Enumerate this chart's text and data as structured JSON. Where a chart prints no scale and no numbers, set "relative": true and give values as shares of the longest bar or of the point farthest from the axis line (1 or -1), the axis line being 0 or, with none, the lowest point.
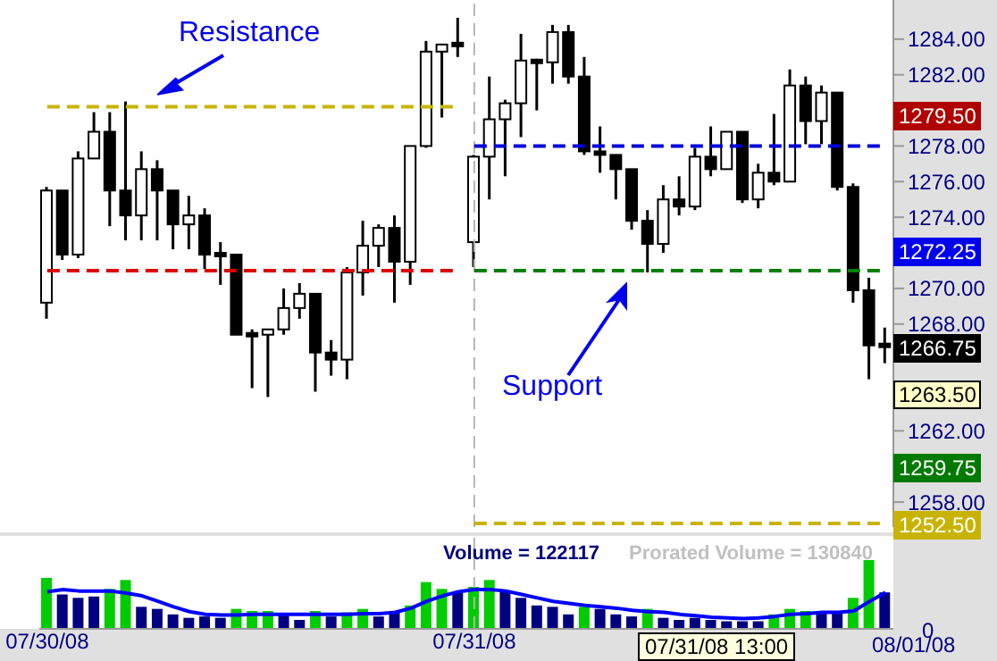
{
  "chart_data": [
    {
      "type": "candlestick",
      "color": "#000000",
      "categories": [
        "07/30/08",
        null,
        null,
        null,
        null,
        null,
        null,
        null,
        null,
        null,
        null,
        null,
        null,
        null,
        null,
        null,
        null,
        null,
        null,
        null,
        null,
        null,
        null,
        null,
        null,
        null,
        null,
        "07/31/08",
        null,
        null,
        null,
        null,
        null,
        null,
        null,
        null,
        null,
        null,
        null,
        null,
        null,
        null,
        null,
        null,
        null,
        null,
        null,
        null,
        null,
        null,
        null,
        null,
        null,
        null
      ],
      "ohlc": [
        [
          1269.2,
          1275.7,
          1268.3,
          1275.5
        ],
        [
          1275.5,
          1275.5,
          1271.6,
          1271.9
        ],
        [
          1271.9,
          1277.7,
          1271.7,
          1277.3
        ],
        [
          1277.3,
          1279.9,
          1277.3,
          1278.8
        ],
        [
          1278.8,
          1279.9,
          1273.5,
          1275.5
        ],
        [
          1275.5,
          1280.5,
          1272.7,
          1274.1
        ],
        [
          1274.1,
          1277.7,
          1272.7,
          1276.7
        ],
        [
          1276.7,
          1277.2,
          1272.7,
          1275.5
        ],
        [
          1275.5,
          1275.5,
          1272.2,
          1273.6
        ],
        [
          1273.6,
          1275.2,
          1272.2,
          1274.1
        ],
        [
          1274.1,
          1274.5,
          1271.1,
          1271.9
        ],
        [
          1271.9,
          1272.6,
          1270.2,
          1271.9
        ],
        [
          1271.9,
          1271.9,
          1267.4,
          1267.4
        ],
        [
          1267.4,
          1267.7,
          1264.4,
          1267.4
        ],
        [
          1267.4,
          1267.7,
          1263.9,
          1267.7
        ],
        [
          1267.7,
          1270.0,
          1267.4,
          1268.9
        ],
        [
          1268.9,
          1270.3,
          1268.3,
          1269.7
        ],
        [
          1269.7,
          1269.7,
          1264.2,
          1266.4
        ],
        [
          1266.4,
          1267.1,
          1265.1,
          1266.0
        ],
        [
          1266.0,
          1271.2,
          1264.9,
          1270.9
        ],
        [
          1270.9,
          1273.8,
          1269.6,
          1272.4
        ],
        [
          1272.4,
          1273.6,
          1271.2,
          1273.4
        ],
        [
          1273.4,
          1274.1,
          1269.2,
          1271.5
        ],
        [
          1271.5,
          1278.0,
          1270.2,
          1278.0
        ],
        [
          1278.0,
          1283.9,
          1277.9,
          1283.3
        ],
        [
          1283.3,
          1283.7,
          1279.6,
          1283.7
        ],
        [
          1283.7,
          1285.2,
          1283.0,
          1283.7
        ],
        [
          1272.6,
          1277.5,
          1271.2,
          1277.4
        ],
        [
          1277.4,
          1281.9,
          1275.0,
          1279.5
        ],
        [
          1279.5,
          1280.6,
          1276.3,
          1280.4
        ],
        [
          1280.4,
          1284.3,
          1278.5,
          1282.8
        ],
        [
          1282.8,
          1282.9,
          1280.0,
          1282.7
        ],
        [
          1282.7,
          1284.8,
          1281.5,
          1284.4
        ],
        [
          1284.4,
          1284.8,
          1281.5,
          1281.9
        ],
        [
          1281.9,
          1283.0,
          1277.5,
          1277.7
        ],
        [
          1277.7,
          1279.1,
          1276.5,
          1277.5
        ],
        [
          1277.5,
          1277.5,
          1275.0,
          1276.7
        ],
        [
          1276.7,
          1276.7,
          1273.3,
          1273.8
        ],
        [
          1273.8,
          1274.4,
          1270.9,
          1272.5
        ],
        [
          1272.5,
          1275.8,
          1272.0,
          1275.0
        ],
        [
          1275.0,
          1276.3,
          1274.1,
          1274.6
        ],
        [
          1274.6,
          1277.9,
          1274.4,
          1277.4
        ],
        [
          1277.4,
          1279.1,
          1276.3,
          1276.7
        ],
        [
          1276.7,
          1278.8,
          1276.7,
          1278.8
        ],
        [
          1278.8,
          1278.8,
          1274.8,
          1275.0
        ],
        [
          1275.0,
          1277.0,
          1274.5,
          1276.5
        ],
        [
          1276.5,
          1279.8,
          1275.8,
          1276.0
        ],
        [
          1276.0,
          1282.3,
          1276.0,
          1281.4
        ],
        [
          1281.4,
          1281.9,
          1278.1,
          1279.4
        ],
        [
          1279.4,
          1281.4,
          1278.1,
          1281.0
        ],
        [
          1281.0,
          1281.0,
          1275.5,
          1275.7
        ],
        [
          1275.7,
          1275.9,
          1269.2,
          1269.9
        ],
        [
          1269.9,
          1270.6,
          1264.9,
          1266.8
        ],
        [
          1266.8,
          1267.8,
          1265.8,
          1266.8
        ]
      ],
      "series": [
        {
          "type": "line",
          "color": "#c8b400",
          "line_style": "dashed",
          "values": [
            1280.2,
            1280.2,
            1280.2,
            1280.2,
            1280.2,
            1280.2,
            1280.2,
            1280.2,
            1280.2,
            1280.2,
            1280.2,
            1280.2,
            1280.2,
            1280.2,
            1280.2,
            1280.2,
            1280.2,
            1280.2,
            1280.2,
            1280.2,
            1280.2,
            1280.2,
            1280.2,
            1280.2,
            1280.2,
            1280.2,
            1280.2,
            null,
            null,
            null,
            null,
            null,
            null,
            null,
            null,
            null,
            null,
            null,
            null,
            null,
            null,
            null,
            null,
            null,
            null,
            null,
            null,
            null,
            null,
            null,
            null,
            null,
            null,
            null
          ]
        },
        {
          "type": "line",
          "color": "#dd0000",
          "line_style": "dashed",
          "values": [
            1271,
            1271,
            1271,
            1271,
            1271,
            1271,
            1271,
            1271,
            1271,
            1271,
            1271,
            1271,
            1271,
            1271,
            1271,
            1271,
            1271,
            1271,
            1271,
            1271,
            1271,
            1271,
            1271,
            1271,
            1271,
            1271,
            1271,
            null,
            null,
            null,
            null,
            null,
            null,
            null,
            null,
            null,
            null,
            null,
            null,
            null,
            null,
            null,
            null,
            null,
            null,
            null,
            null,
            null,
            null,
            null,
            null,
            null,
            null,
            null
          ]
        },
        {
          "type": "line",
          "color": "#0000dd",
          "line_style": "dashed",
          "values": [
            null,
            null,
            null,
            null,
            null,
            null,
            null,
            null,
            null,
            null,
            null,
            null,
            null,
            null,
            null,
            null,
            null,
            null,
            null,
            null,
            null,
            null,
            null,
            null,
            null,
            null,
            null,
            1278,
            1278,
            1278,
            1278,
            1278,
            1278,
            1278,
            1278,
            1278,
            1278,
            1278,
            1278,
            1278,
            1278,
            1278,
            1278,
            1278,
            1278,
            1278,
            1278,
            1278,
            1278,
            1278,
            1278,
            1278,
            1278,
            1278
          ]
        },
        {
          "type": "line",
          "color": "#008000",
          "line_style": "dashed",
          "values": [
            null,
            null,
            null,
            null,
            null,
            null,
            null,
            null,
            null,
            null,
            null,
            null,
            null,
            null,
            null,
            null,
            null,
            null,
            null,
            null,
            null,
            null,
            null,
            null,
            null,
            null,
            null,
            1271,
            1271,
            1271,
            1271,
            1271,
            1271,
            1271,
            1271,
            1271,
            1271,
            1271,
            1271,
            1271,
            1271,
            1271,
            1271,
            1271,
            1271,
            1271,
            1271,
            1271,
            1271,
            1271,
            1271,
            1271,
            1271,
            1271
          ]
        },
        {
          "type": "line",
          "color": "#c8b400",
          "line_style": "dashed",
          "values": [
            null,
            null,
            null,
            null,
            null,
            null,
            null,
            null,
            null,
            null,
            null,
            null,
            null,
            null,
            null,
            null,
            null,
            null,
            null,
            null,
            null,
            null,
            null,
            null,
            null,
            null,
            null,
            1256.8,
            1256.8,
            1256.8,
            1256.8,
            1256.8,
            1256.8,
            1256.8,
            1256.8,
            1256.8,
            1256.8,
            1256.8,
            1256.8,
            1256.8,
            1256.8,
            1256.8,
            1256.8,
            1256.8,
            1256.8,
            1256.8,
            1256.8,
            1256.8,
            1256.8,
            1256.8,
            1256.8,
            1256.8,
            1256.8,
            1256.8
          ]
        }
      ],
      "ylim": [
        1256.6,
        1286.2
      ],
      "yticks": [
        {
          "value": 1258,
          "label": "1258.00"
        },
        {
          "value": 1260,
          "label": null
        },
        {
          "value": 1262,
          "label": "1262.00"
        },
        {
          "value": 1264,
          "label": null
        },
        {
          "value": 1266,
          "label": null
        },
        {
          "value": 1268,
          "label": "1268.00"
        },
        {
          "value": 1270,
          "label": "1270.00"
        },
        {
          "value": 1272,
          "label": null
        },
        {
          "value": 1274,
          "label": "1274.00"
        },
        {
          "value": 1276,
          "label": "1276.00"
        },
        {
          "value": 1278,
          "label": "1278.00"
        },
        {
          "value": 1280,
          "label": null
        },
        {
          "value": 1282,
          "label": "1282.00"
        },
        {
          "value": 1284,
          "label": "1284.00"
        }
      ],
      "tick_labels": "y",
      "ref_lines": [
        {
          "axis": "x",
          "value": "07/31/08",
          "color": "#b4b4b4",
          "line_style": "dashed"
        }
      ],
      "annotations": [
        "Resistance",
        "Support",
        "1279.50",
        "1272.25",
        "1266.75",
        "1263.50",
        "1259.75",
        "1252.50"
      ]
    },
    {
      "type": "bar",
      "relative": true,
      "categories": [
        "07/30/08",
        null,
        null,
        null,
        null,
        null,
        null,
        null,
        null,
        null,
        null,
        null,
        null,
        null,
        null,
        null,
        null,
        null,
        null,
        null,
        null,
        null,
        null,
        null,
        null,
        null,
        null,
        "07/31/08",
        null,
        null,
        null,
        null,
        null,
        null,
        null,
        null,
        null,
        null,
        null,
        null,
        null,
        null,
        null,
        null,
        null,
        null,
        null,
        null,
        null,
        null,
        null,
        null,
        null,
        null
      ],
      "series": [
        {
          "type": "bar",
          "values": [
            0.74,
            0.5,
            0.45,
            0.47,
            0.58,
            0.71,
            0.32,
            0.29,
            0.21,
            0.16,
            0.18,
            0.16,
            0.29,
            0.26,
            0.26,
            0.21,
            0.13,
            0.26,
            0.18,
            0.24,
            0.29,
            0.18,
            0.24,
            0.34,
            0.68,
            0.58,
            0.53,
            0.61,
            0.71,
            0.55,
            0.45,
            0.34,
            0.32,
            0.21,
            0.32,
            0.29,
            0.21,
            0.18,
            0.29,
            0.16,
            0.13,
            0.16,
            0.13,
            0.11,
            0.11,
            0.11,
            0.21,
            0.29,
            0.26,
            0.24,
            0.24,
            0.45,
            1,
            0.53
          ],
          "colors": [
            "#00cc00",
            "#000080",
            "#000080",
            "#000080",
            "#00cc00",
            "#00cc00",
            "#000080",
            "#000080",
            "#000080",
            "#000080",
            "#000080",
            "#000080",
            "#00cc00",
            "#00cc00",
            "#00cc00",
            "#000080",
            "#000080",
            "#00cc00",
            "#000080",
            "#00cc00",
            "#00cc00",
            "#000080",
            "#000080",
            "#00cc00",
            "#00cc00",
            "#00cc00",
            "#000080",
            "#00cc00",
            "#00cc00",
            "#000080",
            "#000080",
            "#000080",
            "#000080",
            "#000080",
            "#00cc00",
            "#000080",
            "#000080",
            "#000080",
            "#00cc00",
            "#000080",
            "#000080",
            "#000080",
            "#000080",
            "#000080",
            "#000080",
            "#000080",
            "#00cc00",
            "#00cc00",
            "#00cc00",
            "#000080",
            "#000080",
            "#00cc00",
            "#00cc00",
            "#000080"
          ]
        },
        {
          "type": "line",
          "color": "#0000ff",
          "values": [
            0.54,
            0.57,
            0.55,
            0.55,
            0.55,
            0.52,
            0.48,
            0.4,
            0.32,
            0.25,
            0.21,
            0.2,
            0.2,
            0.21,
            0.21,
            0.21,
            0.21,
            0.21,
            0.21,
            0.21,
            0.22,
            0.22,
            0.24,
            0.3,
            0.4,
            0.48,
            0.54,
            0.57,
            0.57,
            0.55,
            0.5,
            0.45,
            0.4,
            0.37,
            0.34,
            0.32,
            0.3,
            0.27,
            0.25,
            0.24,
            0.21,
            0.19,
            0.17,
            0.16,
            0.15,
            0.16,
            0.18,
            0.21,
            0.22,
            0.24,
            0.24,
            0.26,
            0.4,
            0.53
          ]
        }
      ],
      "tick_labels": "x",
      "ref_lines": [
        {
          "axis": "x",
          "value": "07/31/08",
          "color": "#b4b4b4",
          "line_style": "dashed"
        }
      ],
      "annotations": [
        "Volume = 122117",
        "Prorated Volume = 130840",
        "07/31/08 13:00",
        "08/01/08",
        "0"
      ]
    }
  ]
}
